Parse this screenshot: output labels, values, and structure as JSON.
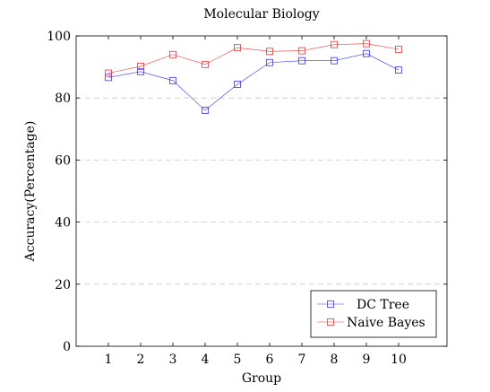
{
  "chart_data": {
    "type": "line",
    "title": "Molecular Biology",
    "xlabel": "Group",
    "ylabel": "Accuracy(Percentage)",
    "x": [
      1,
      2,
      3,
      4,
      5,
      6,
      7,
      8,
      9,
      10
    ],
    "x_ticks": [
      "1",
      "2",
      "3",
      "4",
      "5",
      "6",
      "7",
      "8",
      "9",
      "10"
    ],
    "xlim": [
      0,
      11.5
    ],
    "ylim": [
      0,
      100
    ],
    "y_ticks": [
      0,
      20,
      40,
      60,
      80,
      100
    ],
    "y_tick_labels": [
      "0",
      "20",
      "40",
      "60",
      "80",
      "100"
    ],
    "grid": "horizontal dashed",
    "legend_position": "bottom-right",
    "series": [
      {
        "name": "DC Tree",
        "color": "#3333ff",
        "marker": "square",
        "values": [
          86.6,
          88.5,
          85.6,
          76.0,
          84.4,
          91.4,
          92.0,
          92.0,
          94.3,
          89.0
        ]
      },
      {
        "name": "Naive Bayes",
        "color": "#ee3333",
        "marker": "square",
        "values": [
          88.0,
          90.2,
          94.0,
          90.8,
          96.2,
          95.0,
          95.2,
          97.2,
          97.5,
          95.7
        ]
      }
    ]
  }
}
